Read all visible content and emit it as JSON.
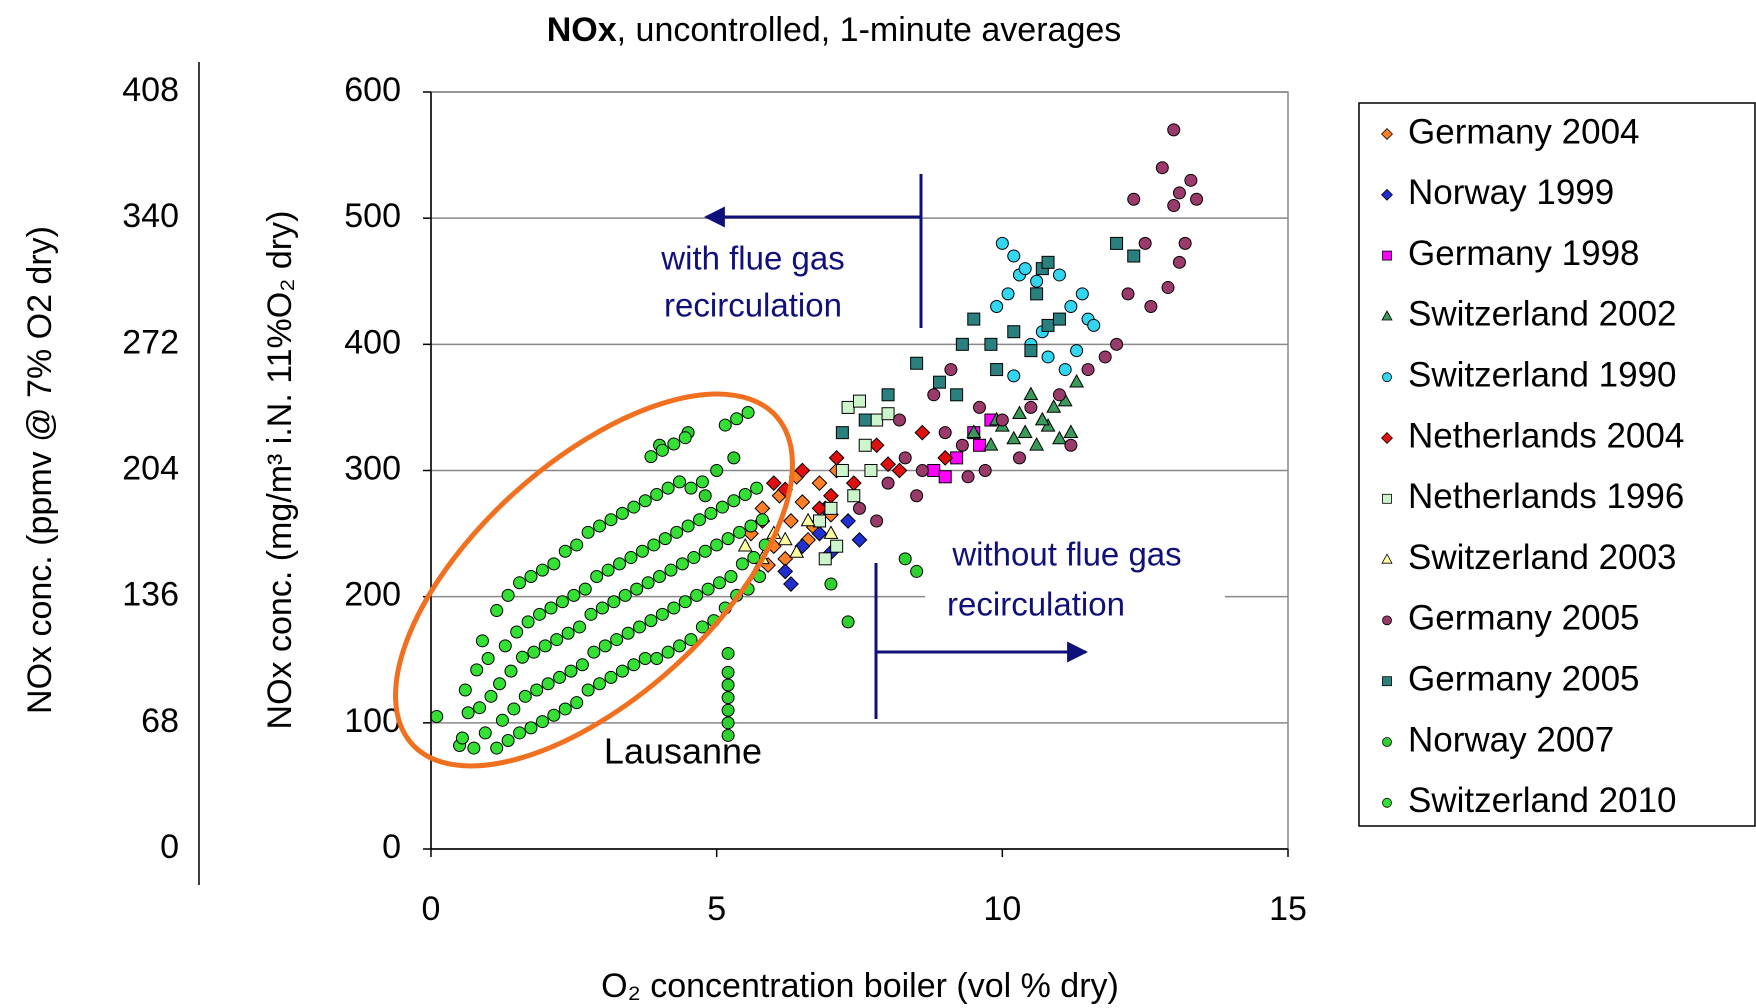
{
  "chart_data": {
    "type": "scatter",
    "title_parts": [
      "NOx",
      ", uncontrolled, 1-minute averages"
    ],
    "xlabel": "O₂ concentration boiler (vol % dry)",
    "ylabel": "NOx conc. (mg/m³ i.N. 11%O₂ dry)",
    "y2label": "NOx  conc.  (ppmv  @ 7% O2 dry)",
    "xlim": [
      0,
      15
    ],
    "xticks": [
      0,
      5,
      10,
      15
    ],
    "ylim": [
      0,
      600
    ],
    "yticks": [
      0,
      100,
      200,
      300,
      400,
      500,
      600
    ],
    "y2lim": [
      0,
      408
    ],
    "y2ticks": [
      0,
      68,
      136,
      204,
      272,
      340,
      408
    ],
    "grid": true,
    "legend": "right",
    "annotations": {
      "with": [
        "with flue gas",
        "recirculation"
      ],
      "without": [
        "without flue gas",
        "recirculation"
      ],
      "lausanne": "Lausanne"
    },
    "series": [
      {
        "name": "Germany 2004",
        "color": "#ff7f27",
        "marker": "diamond",
        "points": [
          [
            5.6,
            250
          ],
          [
            5.8,
            270
          ],
          [
            6.0,
            240
          ],
          [
            6.1,
            280
          ],
          [
            6.3,
            260
          ],
          [
            6.5,
            275
          ],
          [
            6.6,
            245
          ],
          [
            6.8,
            290
          ],
          [
            7.0,
            265
          ],
          [
            5.9,
            225
          ],
          [
            6.2,
            230
          ],
          [
            6.4,
            295
          ],
          [
            6.7,
            255
          ],
          [
            7.1,
            300
          ]
        ]
      },
      {
        "name": "Norway 1999",
        "color": "#1f2fd0",
        "marker": "diamond",
        "points": [
          [
            6.2,
            220
          ],
          [
            6.5,
            240
          ],
          [
            6.8,
            250
          ],
          [
            7.0,
            235
          ],
          [
            7.3,
            260
          ],
          [
            7.5,
            245
          ],
          [
            6.9,
            270
          ],
          [
            6.3,
            210
          ]
        ]
      },
      {
        "name": "Germany 1998",
        "color": "#ff00ff",
        "marker": "square",
        "points": [
          [
            8.8,
            300
          ],
          [
            9.2,
            310
          ],
          [
            9.5,
            330
          ],
          [
            9.8,
            340
          ],
          [
            9.0,
            295
          ],
          [
            9.6,
            320
          ]
        ]
      },
      {
        "name": "Switzerland 2002",
        "color": "#3a9a5a",
        "marker": "triangle",
        "points": [
          [
            9.5,
            330
          ],
          [
            9.8,
            320
          ],
          [
            10.0,
            335
          ],
          [
            10.2,
            325
          ],
          [
            10.4,
            330
          ],
          [
            10.6,
            320
          ],
          [
            10.8,
            335
          ],
          [
            11.0,
            325
          ],
          [
            11.2,
            330
          ],
          [
            10.5,
            360
          ],
          [
            10.9,
            350
          ],
          [
            11.3,
            370
          ],
          [
            9.9,
            340
          ],
          [
            10.3,
            345
          ],
          [
            11.1,
            355
          ],
          [
            10.7,
            340
          ]
        ]
      },
      {
        "name": "Switzerland 1990",
        "color": "#33d6f0",
        "marker": "circle",
        "points": [
          [
            10.0,
            480
          ],
          [
            10.2,
            470
          ],
          [
            10.3,
            455
          ],
          [
            10.1,
            440
          ],
          [
            10.4,
            460
          ],
          [
            10.6,
            450
          ],
          [
            11.0,
            455
          ],
          [
            11.2,
            430
          ],
          [
            11.5,
            420
          ],
          [
            11.4,
            440
          ],
          [
            10.5,
            400
          ],
          [
            10.8,
            390
          ],
          [
            11.1,
            380
          ],
          [
            11.6,
            415
          ],
          [
            9.9,
            430
          ],
          [
            10.7,
            410
          ],
          [
            10.2,
            375
          ],
          [
            11.3,
            395
          ]
        ]
      },
      {
        "name": "Netherlands 2004",
        "color": "#e01010",
        "marker": "diamond",
        "points": [
          [
            5.8,
            260
          ],
          [
            6.2,
            285
          ],
          [
            6.5,
            300
          ],
          [
            6.8,
            270
          ],
          [
            7.1,
            310
          ],
          [
            7.4,
            290
          ],
          [
            7.8,
            320
          ],
          [
            8.2,
            300
          ],
          [
            8.6,
            330
          ],
          [
            9.0,
            310
          ],
          [
            6.0,
            290
          ],
          [
            7.0,
            280
          ],
          [
            8.0,
            305
          ]
        ]
      },
      {
        "name": "Netherlands 1996",
        "color": "#ccf5cc",
        "marker": "square",
        "points": [
          [
            6.8,
            260
          ],
          [
            7.0,
            270
          ],
          [
            7.2,
            300
          ],
          [
            7.3,
            350
          ],
          [
            7.5,
            355
          ],
          [
            7.6,
            320
          ],
          [
            7.8,
            340
          ],
          [
            7.1,
            240
          ],
          [
            7.4,
            280
          ],
          [
            6.9,
            230
          ],
          [
            8.0,
            345
          ],
          [
            7.7,
            300
          ]
        ]
      },
      {
        "name": "Switzerland 2003",
        "color": "#ffffa0",
        "marker": "triangle",
        "points": [
          [
            5.5,
            240
          ],
          [
            5.8,
            230
          ],
          [
            6.0,
            250
          ],
          [
            6.2,
            245
          ],
          [
            6.6,
            260
          ],
          [
            7.0,
            250
          ],
          [
            5.7,
            220
          ],
          [
            6.4,
            235
          ]
        ]
      },
      {
        "name": "Germany 2005",
        "color": "#9a3a6a",
        "marker": "circle",
        "points": [
          [
            7.5,
            270
          ],
          [
            8.0,
            290
          ],
          [
            8.3,
            310
          ],
          [
            8.6,
            300
          ],
          [
            9.0,
            330
          ],
          [
            9.3,
            320
          ],
          [
            9.6,
            350
          ],
          [
            8.8,
            360
          ],
          [
            9.1,
            380
          ],
          [
            7.8,
            260
          ],
          [
            8.5,
            280
          ],
          [
            10.0,
            340
          ],
          [
            10.5,
            350
          ],
          [
            11.0,
            360
          ],
          [
            11.5,
            380
          ],
          [
            12.0,
            400
          ],
          [
            12.2,
            440
          ],
          [
            12.5,
            480
          ],
          [
            12.8,
            540
          ],
          [
            13.0,
            570
          ],
          [
            13.1,
            520
          ],
          [
            13.3,
            530
          ],
          [
            13.4,
            515
          ],
          [
            13.2,
            480
          ],
          [
            13.1,
            465
          ],
          [
            12.9,
            445
          ],
          [
            12.6,
            430
          ],
          [
            11.8,
            390
          ],
          [
            9.7,
            300
          ],
          [
            10.3,
            310
          ],
          [
            11.2,
            320
          ],
          [
            9.4,
            295
          ],
          [
            8.2,
            340
          ],
          [
            12.3,
            515
          ],
          [
            13.0,
            510
          ]
        ]
      },
      {
        "name": "Germany 2005",
        "color": "#2a7f7f",
        "marker": "square",
        "points": [
          [
            7.2,
            330
          ],
          [
            7.6,
            340
          ],
          [
            8.0,
            360
          ],
          [
            8.5,
            385
          ],
          [
            8.9,
            370
          ],
          [
            9.3,
            400
          ],
          [
            9.5,
            420
          ],
          [
            9.8,
            400
          ],
          [
            10.2,
            410
          ],
          [
            10.5,
            395
          ],
          [
            10.8,
            415
          ],
          [
            11.0,
            420
          ],
          [
            10.7,
            460
          ],
          [
            10.8,
            465
          ],
          [
            12.0,
            480
          ],
          [
            12.3,
            470
          ],
          [
            9.9,
            380
          ],
          [
            10.6,
            440
          ],
          [
            9.2,
            360
          ]
        ]
      },
      {
        "name": "Norway 2007",
        "color": "#2fd12f",
        "marker": "circle",
        "points": [
          [
            5.2,
            90
          ],
          [
            5.2,
            100
          ],
          [
            5.2,
            110
          ],
          [
            5.2,
            120
          ],
          [
            5.2,
            130
          ],
          [
            5.2,
            140
          ],
          [
            5.2,
            155
          ],
          [
            7.3,
            180
          ],
          [
            7.0,
            210
          ],
          [
            8.3,
            230
          ],
          [
            8.5,
            220
          ],
          [
            4.8,
            280
          ],
          [
            5.0,
            300
          ],
          [
            4.5,
            330
          ],
          [
            4.0,
            320
          ],
          [
            5.3,
            310
          ]
        ]
      },
      {
        "name": "Switzerland 2010",
        "color": "#33e033",
        "marker": "circle",
        "points": [
          [
            0.1,
            105
          ],
          [
            0.5,
            82
          ],
          [
            0.55,
            88
          ],
          [
            0.65,
            108
          ],
          [
            0.6,
            126
          ],
          [
            0.75,
            80
          ],
          [
            0.85,
            112
          ],
          [
            0.8,
            142
          ],
          [
            0.9,
            165
          ],
          [
            0.95,
            92
          ],
          [
            1.05,
            121
          ],
          [
            1.0,
            151
          ],
          [
            1.15,
            80
          ],
          [
            1.25,
            102
          ],
          [
            1.2,
            131
          ],
          [
            1.3,
            161
          ],
          [
            1.15,
            189
          ],
          [
            1.35,
            86
          ],
          [
            1.45,
            111
          ],
          [
            1.4,
            141
          ],
          [
            1.5,
            172
          ],
          [
            1.35,
            201
          ],
          [
            1.55,
            92
          ],
          [
            1.65,
            121
          ],
          [
            1.6,
            152
          ],
          [
            1.7,
            180
          ],
          [
            1.55,
            211
          ],
          [
            1.75,
            96
          ],
          [
            1.85,
            126
          ],
          [
            1.8,
            156
          ],
          [
            1.9,
            186
          ],
          [
            1.75,
            216
          ],
          [
            1.95,
            101
          ],
          [
            2.05,
            131
          ],
          [
            2.0,
            161
          ],
          [
            2.1,
            191
          ],
          [
            1.95,
            221
          ],
          [
            2.15,
            106
          ],
          [
            2.25,
            136
          ],
          [
            2.2,
            166
          ],
          [
            2.3,
            196
          ],
          [
            2.15,
            226
          ],
          [
            2.35,
            111
          ],
          [
            2.45,
            141
          ],
          [
            2.4,
            171
          ],
          [
            2.5,
            201
          ],
          [
            2.35,
            236
          ],
          [
            2.55,
            116
          ],
          [
            2.65,
            146
          ],
          [
            2.6,
            176
          ],
          [
            2.7,
            206
          ],
          [
            2.55,
            241
          ],
          [
            2.75,
            126
          ],
          [
            2.85,
            156
          ],
          [
            2.8,
            186
          ],
          [
            2.9,
            216
          ],
          [
            2.75,
            251
          ],
          [
            2.95,
            131
          ],
          [
            3.05,
            161
          ],
          [
            3.0,
            191
          ],
          [
            3.1,
            221
          ],
          [
            2.95,
            256
          ],
          [
            3.15,
            136
          ],
          [
            3.25,
            166
          ],
          [
            3.2,
            196
          ],
          [
            3.3,
            226
          ],
          [
            3.15,
            261
          ],
          [
            3.35,
            141
          ],
          [
            3.45,
            171
          ],
          [
            3.4,
            201
          ],
          [
            3.5,
            231
          ],
          [
            3.35,
            266
          ],
          [
            3.55,
            146
          ],
          [
            3.65,
            176
          ],
          [
            3.6,
            206
          ],
          [
            3.7,
            236
          ],
          [
            3.55,
            271
          ],
          [
            3.75,
            151
          ],
          [
            3.85,
            181
          ],
          [
            3.8,
            211
          ],
          [
            3.9,
            241
          ],
          [
            3.75,
            276
          ],
          [
            3.85,
            311
          ],
          [
            3.95,
            151
          ],
          [
            4.05,
            186
          ],
          [
            4.0,
            216
          ],
          [
            4.1,
            246
          ],
          [
            3.95,
            281
          ],
          [
            4.05,
            316
          ],
          [
            4.15,
            156
          ],
          [
            4.25,
            191
          ],
          [
            4.2,
            221
          ],
          [
            4.3,
            251
          ],
          [
            4.15,
            286
          ],
          [
            4.25,
            321
          ],
          [
            4.35,
            161
          ],
          [
            4.45,
            196
          ],
          [
            4.4,
            226
          ],
          [
            4.5,
            256
          ],
          [
            4.35,
            291
          ],
          [
            4.45,
            326
          ],
          [
            4.55,
            166
          ],
          [
            4.65,
            201
          ],
          [
            4.6,
            231
          ],
          [
            4.7,
            261
          ],
          [
            4.55,
            286
          ],
          [
            4.75,
            176
          ],
          [
            4.85,
            206
          ],
          [
            4.8,
            236
          ],
          [
            4.9,
            266
          ],
          [
            4.75,
            291
          ],
          [
            4.95,
            181
          ],
          [
            5.05,
            211
          ],
          [
            5.0,
            241
          ],
          [
            5.1,
            271
          ],
          [
            5.15,
            191
          ],
          [
            5.25,
            216
          ],
          [
            5.2,
            246
          ],
          [
            5.3,
            276
          ],
          [
            5.15,
            336
          ],
          [
            5.35,
            201
          ],
          [
            5.45,
            226
          ],
          [
            5.4,
            251
          ],
          [
            5.5,
            281
          ],
          [
            5.35,
            341
          ],
          [
            5.55,
            206
          ],
          [
            5.65,
            231
          ],
          [
            5.6,
            256
          ],
          [
            5.7,
            286
          ],
          [
            5.55,
            346
          ],
          [
            5.75,
            216
          ],
          [
            5.85,
            241
          ],
          [
            5.8,
            261
          ]
        ]
      }
    ]
  }
}
